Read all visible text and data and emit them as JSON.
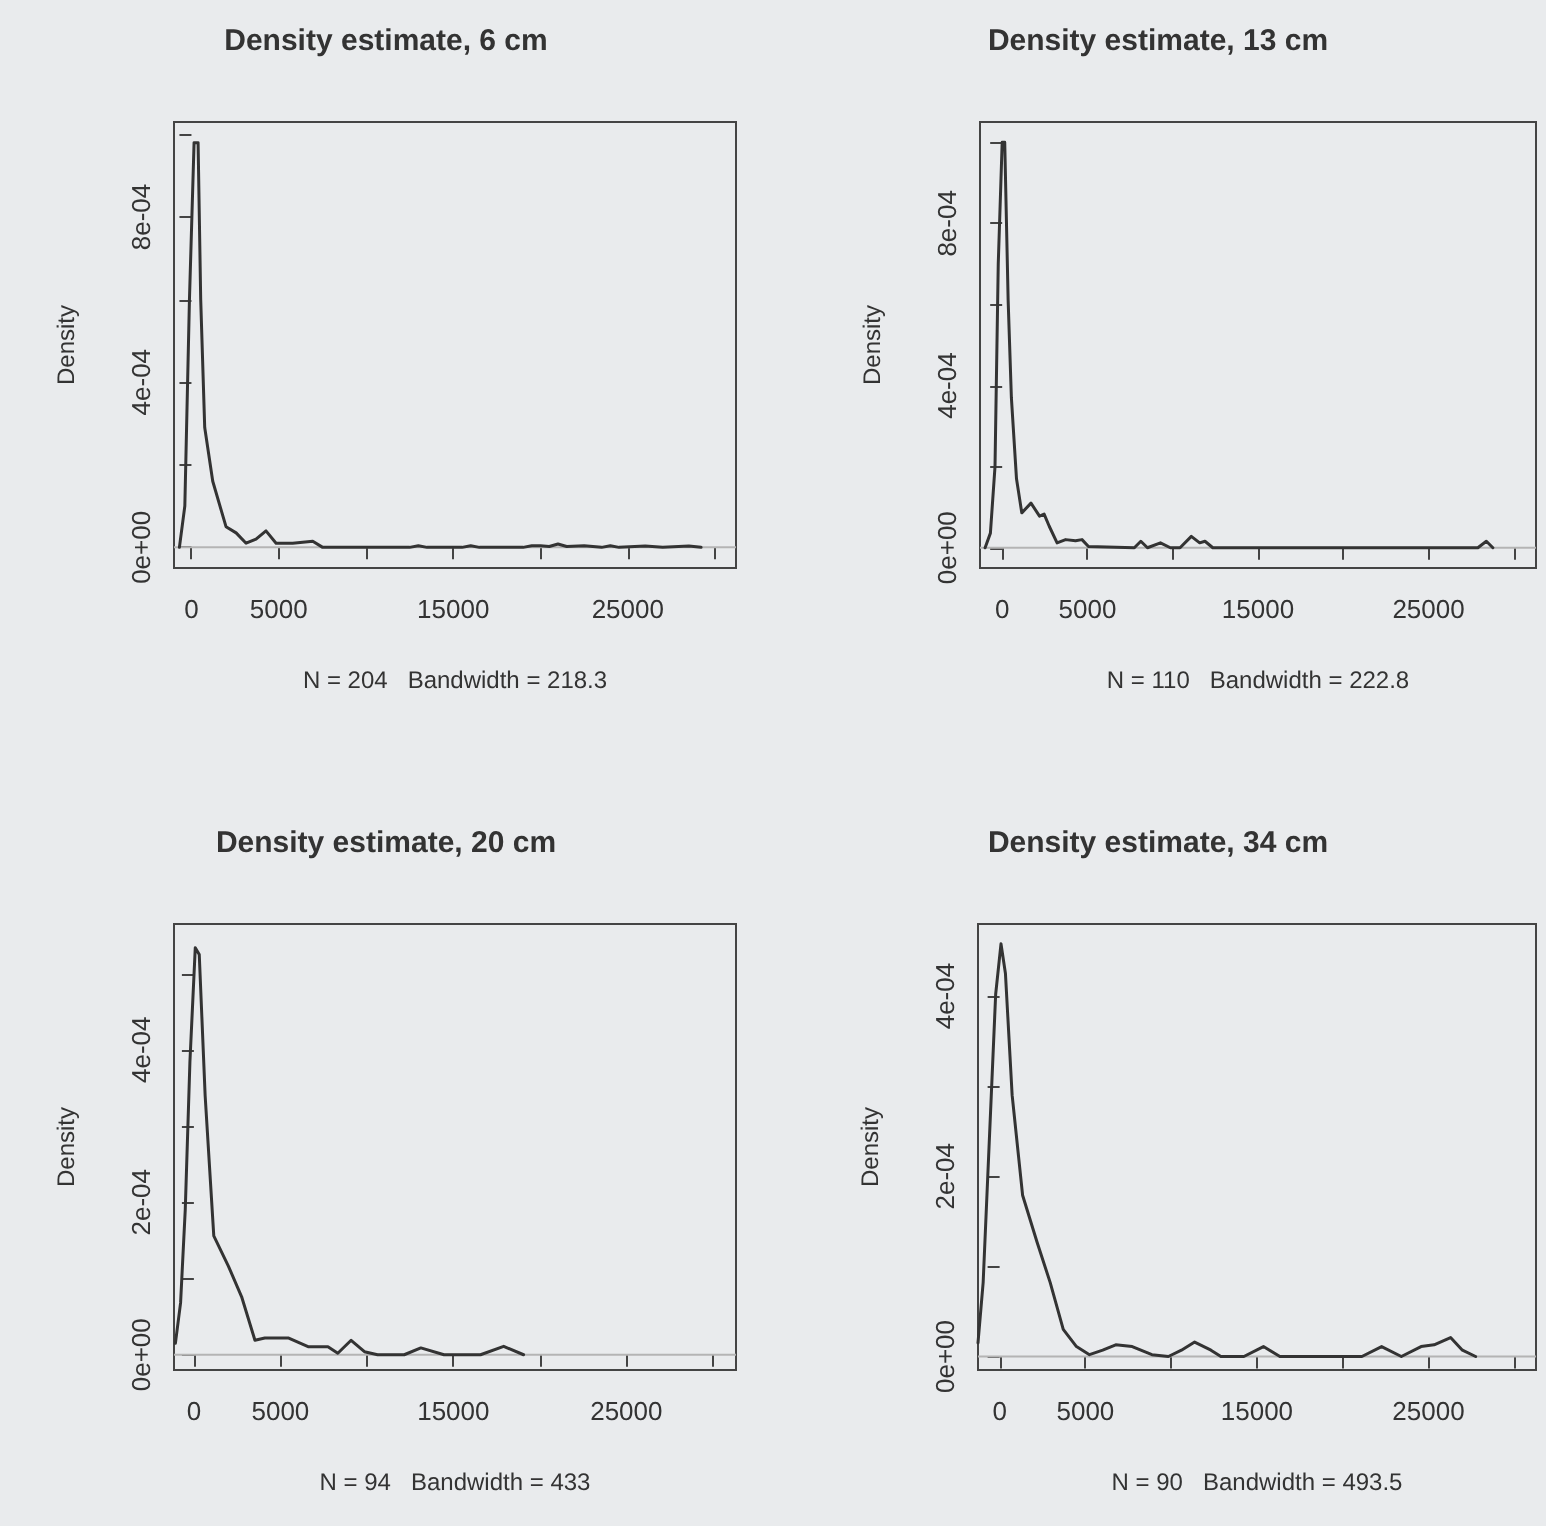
{
  "chart_data": [
    {
      "type": "line",
      "title": "Density estimate, 6 cm",
      "xlabel": "N = 204   Bandwidth = 218.3",
      "ylabel": "Density",
      "color": "#333333",
      "line_style": "solid",
      "x": [
        -690,
        -380,
        -115,
        150,
        380,
        530,
        760,
        1220,
        1980,
        2560,
        3130,
        3700,
        4270,
        4850,
        5800,
        6950,
        7520,
        8000,
        12500,
        13000,
        13500,
        15500,
        16000,
        16500,
        19000,
        19500,
        20000,
        20500,
        21000,
        21500,
        22500,
        23500,
        24000,
        24500,
        26000,
        27000,
        28500,
        29200
      ],
      "values": [
        0,
        0.0001,
        0.0006,
        0.00098,
        0.00098,
        0.0006,
        0.00029,
        0.00016,
        5e-05,
        3.5e-05,
        1e-05,
        2e-05,
        4e-05,
        1e-05,
        1e-05,
        1.5e-05,
        0,
        0,
        0,
        4e-06,
        0,
        0,
        4e-06,
        0,
        0,
        4e-06,
        4e-06,
        2e-06,
        8e-06,
        2e-06,
        4e-06,
        0,
        4e-06,
        0,
        3e-06,
        0,
        3e-06,
        0
      ],
      "xlim": [
        -1000,
        31200
      ],
      "xticks": [
        0,
        5000,
        {
          "value": 10000,
          "label": null
        },
        15000,
        {
          "value": 20000,
          "label": null
        },
        25000,
        {
          "value": 30000,
          "label": null
        }
      ],
      "ylim": [
        -5e-05,
        0.00103
      ],
      "yticks": [
        {
          "value": 0,
          "label": "0e+00"
        },
        {
          "value": 0.0002,
          "label": null
        },
        {
          "value": 0.0004,
          "label": "4e-04"
        },
        {
          "value": 0.0006,
          "label": null
        },
        {
          "value": 0.0008,
          "label": "8e-04"
        },
        {
          "value": 0.001,
          "label": null
        }
      ],
      "ref_lines": [
        {
          "axis": "y",
          "value": 0,
          "color": "#b4b4b4"
        }
      ]
    },
    {
      "type": "line",
      "title": "Density estimate, 13 cm",
      "xlabel": "N = 110   Bandwidth = 222.8",
      "ylabel": "Density",
      "color": "#333333",
      "line_style": "solid",
      "x": [
        -1000,
        -690,
        -420,
        -230,
        0,
        150,
        350,
        540,
        840,
        1150,
        1690,
        2190,
        2460,
        2760,
        3220,
        3720,
        4300,
        4680,
        5060,
        7750,
        8130,
        8520,
        9280,
        9860,
        10430,
        11090,
        11580,
        11890,
        12350,
        27890,
        28390,
        28770
      ],
      "values": [
        0,
        3.6e-05,
        0.0002,
        0.0007,
        0.001,
        0.001,
        0.00061,
        0.00037,
        0.00017,
        8.6e-05,
        0.00011,
        7.8e-05,
        8.3e-05,
        5.3e-05,
        1.2e-05,
        2e-05,
        1.7e-05,
        2e-05,
        3e-06,
        0,
        1.6e-05,
        0,
        1.2e-05,
        0,
        0,
        2.8e-05,
        1.2e-05,
        1.6e-05,
        0,
        0,
        1.6e-05,
        0
      ],
      "xlim": [
        -1300,
        31300
      ],
      "xticks": [
        0,
        5000,
        {
          "value": 10000,
          "label": null
        },
        15000,
        {
          "value": 20000,
          "label": null
        },
        25000,
        {
          "value": 30000,
          "label": null
        }
      ],
      "ylim": [
        -5e-05,
        0.00105
      ],
      "yticks": [
        {
          "value": 0,
          "label": "0e+00"
        },
        {
          "value": 0.0002,
          "label": null
        },
        {
          "value": 0.0004,
          "label": "4e-04"
        },
        {
          "value": 0.0006,
          "label": null
        },
        {
          "value": 0.0008,
          "label": "8e-04"
        },
        {
          "value": 0.001,
          "label": null
        }
      ],
      "ref_lines": [
        {
          "axis": "y",
          "value": 0,
          "color": "#b4b4b4"
        }
      ]
    },
    {
      "type": "line",
      "title": "Density estimate, 20 cm",
      "xlabel": "N = 94   Bandwidth = 433",
      "ylabel": "Density",
      "color": "#333333",
      "line_style": "solid",
      "x": [
        -1070,
        -770,
        -500,
        -230,
        80,
        310,
        650,
        1150,
        2000,
        2760,
        3530,
        4100,
        5450,
        6600,
        7750,
        8320,
        9090,
        9860,
        10620,
        12160,
        13120,
        14460,
        16570,
        17910,
        19060
      ],
      "values": [
        1.5e-05,
        6.8e-05,
        0.00019,
        0.000384,
        0.000534,
        0.000525,
        0.00034,
        0.000156,
        0.000116,
        7.6e-05,
        1.9e-05,
        2.2e-05,
        2.2e-05,
        1.05e-05,
        1.05e-05,
        2e-06,
        1.9e-05,
        4e-06,
        0,
        0,
        9e-06,
        0,
        0,
        1.1e-05,
        0
      ],
      "xlim": [
        -1150,
        31340
      ],
      "xticks": [
        0,
        5000,
        {
          "value": 10000,
          "label": null
        },
        15000,
        {
          "value": 20000,
          "label": null
        },
        25000,
        {
          "value": 30000,
          "label": null
        }
      ],
      "ylim": [
        -2e-05,
        0.000565
      ],
      "yticks": [
        {
          "value": 0,
          "label": "0e+00"
        },
        {
          "value": 0.0001,
          "label": null
        },
        {
          "value": 0.0002,
          "label": "2e-04"
        },
        {
          "value": 0.0003,
          "label": null
        },
        {
          "value": 0.0004,
          "label": "4e-04"
        },
        {
          "value": 0.0005,
          "label": null
        }
      ],
      "ref_lines": [
        {
          "axis": "y",
          "value": 0,
          "color": "#b4b4b4"
        }
      ]
    },
    {
      "type": "line",
      "title": "Density estimate, 34 cm",
      "xlabel": "N = 90   Bandwidth = 493.5",
      "ylabel": "Density",
      "color": "#333333",
      "line_style": "solid",
      "x": [
        -1260,
        -960,
        -570,
        -230,
        80,
        340,
        730,
        1340,
        2180,
        2950,
        3710,
        4480,
        5240,
        6010,
        6770,
        7730,
        8880,
        9840,
        10600,
        11370,
        12320,
        12900,
        14240,
        15380,
        16340,
        17110,
        21120,
        22270,
        23420,
        24570,
        25330,
        26290,
        26980,
        27750
      ],
      "values": [
        1.5e-05,
        8.2e-05,
        0.000253,
        0.000402,
        0.000458,
        0.000425,
        0.00029,
        0.000179,
        0.000127,
        8.2e-05,
        3e-05,
        1.1e-05,
        2e-06,
        7e-06,
        1.3e-05,
        1.1e-05,
        2e-06,
        0,
        7e-06,
        1.6e-05,
        7e-06,
        0,
        0,
        1.1e-05,
        0,
        0,
        0,
        1.1e-05,
        0,
        1.1e-05,
        1.3e-05,
        2.1e-05,
        7e-06,
        0
      ],
      "xlim": [
        -1260,
        31270
      ],
      "xticks": [
        0,
        5000,
        {
          "value": 10000,
          "label": null
        },
        15000,
        {
          "value": 20000,
          "label": null
        },
        25000,
        {
          "value": 30000,
          "label": null
        }
      ],
      "ylim": [
        -1.5e-05,
        0.00048
      ],
      "yticks": [
        {
          "value": 0,
          "label": "0e+00"
        },
        {
          "value": 0.0001,
          "label": null
        },
        {
          "value": 0.0002,
          "label": "2e-04"
        },
        {
          "value": 0.0003,
          "label": null
        },
        {
          "value": 0.0004,
          "label": "4e-04"
        }
      ],
      "ref_lines": [
        {
          "axis": "y",
          "value": 0,
          "color": "#b4b4b4"
        }
      ]
    }
  ]
}
